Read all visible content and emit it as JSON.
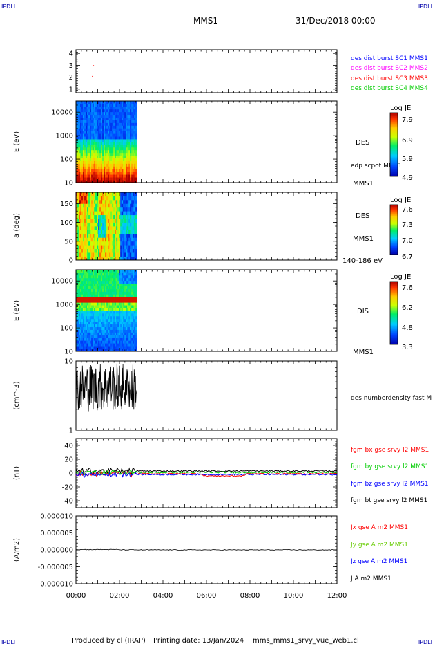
{
  "corners": {
    "top_left": "IPDLI",
    "top_right": "IPDLI",
    "bottom_left": "IPDLI",
    "bottom_right": "IPDLI"
  },
  "header": {
    "title": "MMS1",
    "datetime": "31/Dec/2018 00:00"
  },
  "footer": {
    "produced_by": "Produced by cl (IRAP)",
    "printing_date": "Printing date: 13/Jan/2024",
    "file": "mms_mms1_srvy_vue_web1.cl"
  },
  "chart_data": [
    {
      "type": "scatter",
      "panel": "spacecraft burst indicator",
      "y_ticks": [
        "4",
        "3",
        "2",
        "1"
      ],
      "ylim": [
        0.7,
        4.3
      ],
      "series": [
        {
          "name": "des dist burst SC1 MMS1",
          "color": "#0000ff",
          "points": []
        },
        {
          "name": "des dist burst SC2 MMS2",
          "color": "#ff00ff",
          "points": []
        },
        {
          "name": "des dist burst SC3 MMS3",
          "color": "#ff0000",
          "points": [
            [
              0.78,
              3.0
            ],
            [
              0.74,
              2.1
            ]
          ]
        },
        {
          "name": "des dist burst SC4 MMS4",
          "color": "#00cc00",
          "points": []
        }
      ]
    },
    {
      "type": "heatmap",
      "panel": "DES energy spectrogram",
      "ylabel": "E (eV)",
      "y_log": true,
      "ylim": [
        10,
        30000
      ],
      "y_ticks": [
        "10000",
        "1000",
        "100",
        "10"
      ],
      "data_end_hours": 2.8,
      "instrument": "DES",
      "overlay_label": "edp scpot MMS1",
      "spacecraft": "MMS1",
      "colorbar": {
        "label": "Log JE",
        "ticks": [
          "7.9",
          "6.9",
          "5.9",
          "4.9"
        ]
      }
    },
    {
      "type": "heatmap",
      "panel": "DES pitch angle",
      "ylabel": "a (deg)",
      "ylim": [
        0,
        180
      ],
      "y_ticks": [
        "150",
        "100",
        "50",
        "0"
      ],
      "data_end_hours": 2.8,
      "instrument": "DES",
      "spacecraft": "MMS1",
      "energy_range": "140-186 eV",
      "colorbar": {
        "label": "Log JE",
        "ticks": [
          "7.6",
          "7.3",
          "7.0",
          "6.7"
        ]
      }
    },
    {
      "type": "heatmap",
      "panel": "DIS energy spectrogram",
      "ylabel": "E (eV)",
      "y_log": true,
      "ylim": [
        10,
        30000
      ],
      "y_ticks": [
        "10000",
        "1000",
        "100",
        "10"
      ],
      "data_end_hours": 2.8,
      "instrument": "DIS",
      "spacecraft": "MMS1",
      "colorbar": {
        "label": "Log JE",
        "ticks": [
          "7.6",
          "6.2",
          "4.8",
          "3.3"
        ]
      }
    },
    {
      "type": "line",
      "panel": "density",
      "ylabel": "(cm^-3)",
      "y_log": true,
      "ylim": [
        1,
        10
      ],
      "y_ticks": [
        "10",
        "1"
      ],
      "data_end_hours": 2.8,
      "series": [
        {
          "name": "des numberdensity fast M",
          "color": "#000000",
          "mean": 4.2,
          "spread": 0.35
        }
      ]
    },
    {
      "type": "line",
      "panel": "magnetic field",
      "ylabel": "(nT)",
      "ylim": [
        -50,
        50
      ],
      "y_ticks": [
        "40",
        "20",
        "0",
        "-20",
        "-40"
      ],
      "series": [
        {
          "name": "fgm bx gse srvy l2 MMS1",
          "color": "#ff0000"
        },
        {
          "name": "fgm by gse srvy l2 MMS1",
          "color": "#00cc00"
        },
        {
          "name": "fgm bz gse srvy l2 MMS1",
          "color": "#0000ff"
        },
        {
          "name": "fgm bt gse srvy l2 MMS1",
          "color": "#000000"
        }
      ]
    },
    {
      "type": "line",
      "panel": "current density",
      "ylabel": "(A/m2)",
      "ylim": [
        -1e-05,
        1e-05
      ],
      "y_ticks": [
        "0.000010",
        "0.000005",
        "0.000000",
        "-0.000005",
        "-0.000010"
      ],
      "series": [
        {
          "name": "Jx gse A m2 MMS1",
          "color": "#ff0000"
        },
        {
          "name": "Jy gse A m2 MMS1",
          "color": "#66cc00"
        },
        {
          "name": "Jz gse A m2 MMS1",
          "color": "#0000ff"
        },
        {
          "name": "J A m2 MMS1",
          "color": "#000000"
        }
      ]
    }
  ],
  "x_axis": {
    "xlim": [
      0,
      12
    ],
    "tick_labels": [
      "00:00",
      "02:00",
      "04:00",
      "06:00",
      "08:00",
      "10:00",
      "12:00"
    ]
  }
}
